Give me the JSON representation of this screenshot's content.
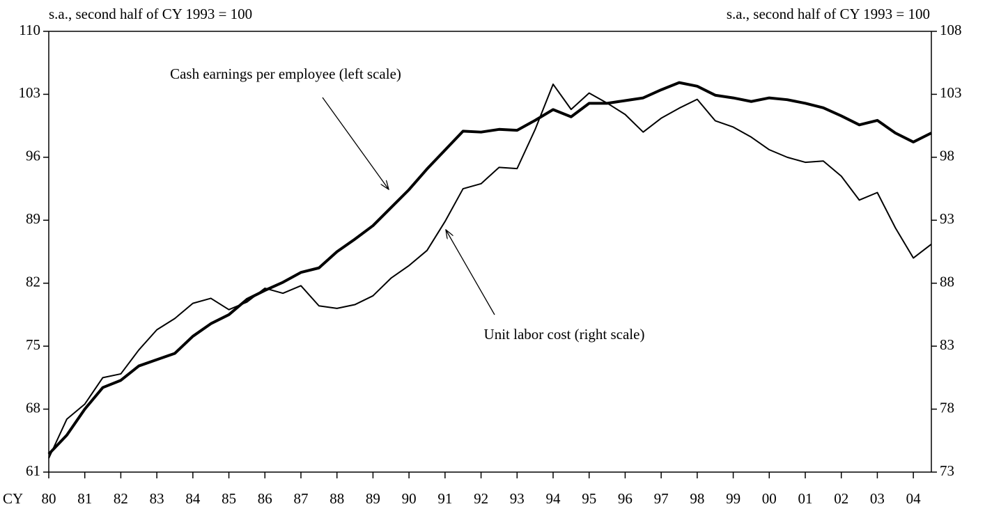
{
  "chart_data": {
    "type": "line",
    "y_axis_label": "s.a., second half of CY 1993 = 100",
    "y2_axis_label": "s.a., second half of CY 1993 = 100",
    "x_axis_label": "CY",
    "categories": [
      "80",
      null,
      "81",
      null,
      "82",
      null,
      "83",
      null,
      "84",
      null,
      "85",
      null,
      "86",
      null,
      "87",
      null,
      "88",
      null,
      "89",
      null,
      "90",
      null,
      "91",
      null,
      "92",
      null,
      "93",
      null,
      "94",
      null,
      "95",
      null,
      "96",
      null,
      "97",
      null,
      "98",
      null,
      "99",
      null,
      "00",
      null,
      "01",
      null,
      "02",
      null,
      "03",
      null,
      "04",
      null
    ],
    "series": [
      {
        "name": "Cash earnings per employee (left scale)",
        "color": "#000000",
        "axis": "y",
        "values": [
          63.0,
          65.1,
          68.0,
          70.4,
          71.2,
          72.8,
          73.5,
          74.2,
          76.1,
          77.5,
          78.5,
          80.2,
          81.2,
          82.1,
          83.2,
          83.7,
          85.5,
          86.9,
          88.4,
          90.4,
          92.4,
          94.7,
          96.8,
          98.9,
          98.8,
          99.1,
          99.0,
          100.1,
          101.3,
          100.5,
          102.0,
          102.0,
          102.3,
          102.6,
          103.5,
          104.3,
          103.9,
          102.9,
          102.6,
          102.2,
          102.6,
          102.4,
          102.0,
          101.5,
          100.6,
          99.6,
          100.1,
          98.7,
          97.7,
          98.7
        ]
      },
      {
        "name": "Unit labor cost (right scale)",
        "color": "#000000",
        "axis": "y2",
        "values": [
          74.1,
          77.2,
          78.4,
          80.5,
          80.8,
          82.7,
          84.3,
          85.2,
          86.4,
          86.8,
          85.9,
          86.5,
          87.6,
          87.2,
          87.8,
          86.2,
          86.0,
          86.3,
          87.0,
          88.4,
          89.4,
          90.6,
          92.9,
          95.5,
          95.9,
          97.2,
          97.1,
          100.2,
          103.8,
          101.8,
          103.1,
          102.3,
          101.4,
          100.0,
          101.1,
          101.9,
          102.6,
          100.9,
          100.4,
          99.6,
          98.6,
          98.0,
          97.6,
          97.7,
          96.5,
          94.6,
          95.2,
          92.4,
          90.0,
          91.1
        ]
      }
    ],
    "ylim": [
      61,
      110
    ],
    "yticks": [
      61,
      68,
      75,
      82,
      89,
      96,
      103,
      110
    ],
    "y2lim": [
      73,
      108
    ],
    "y2ticks": [
      73,
      78,
      83,
      88,
      93,
      98,
      103,
      108
    ],
    "grid": false
  }
}
